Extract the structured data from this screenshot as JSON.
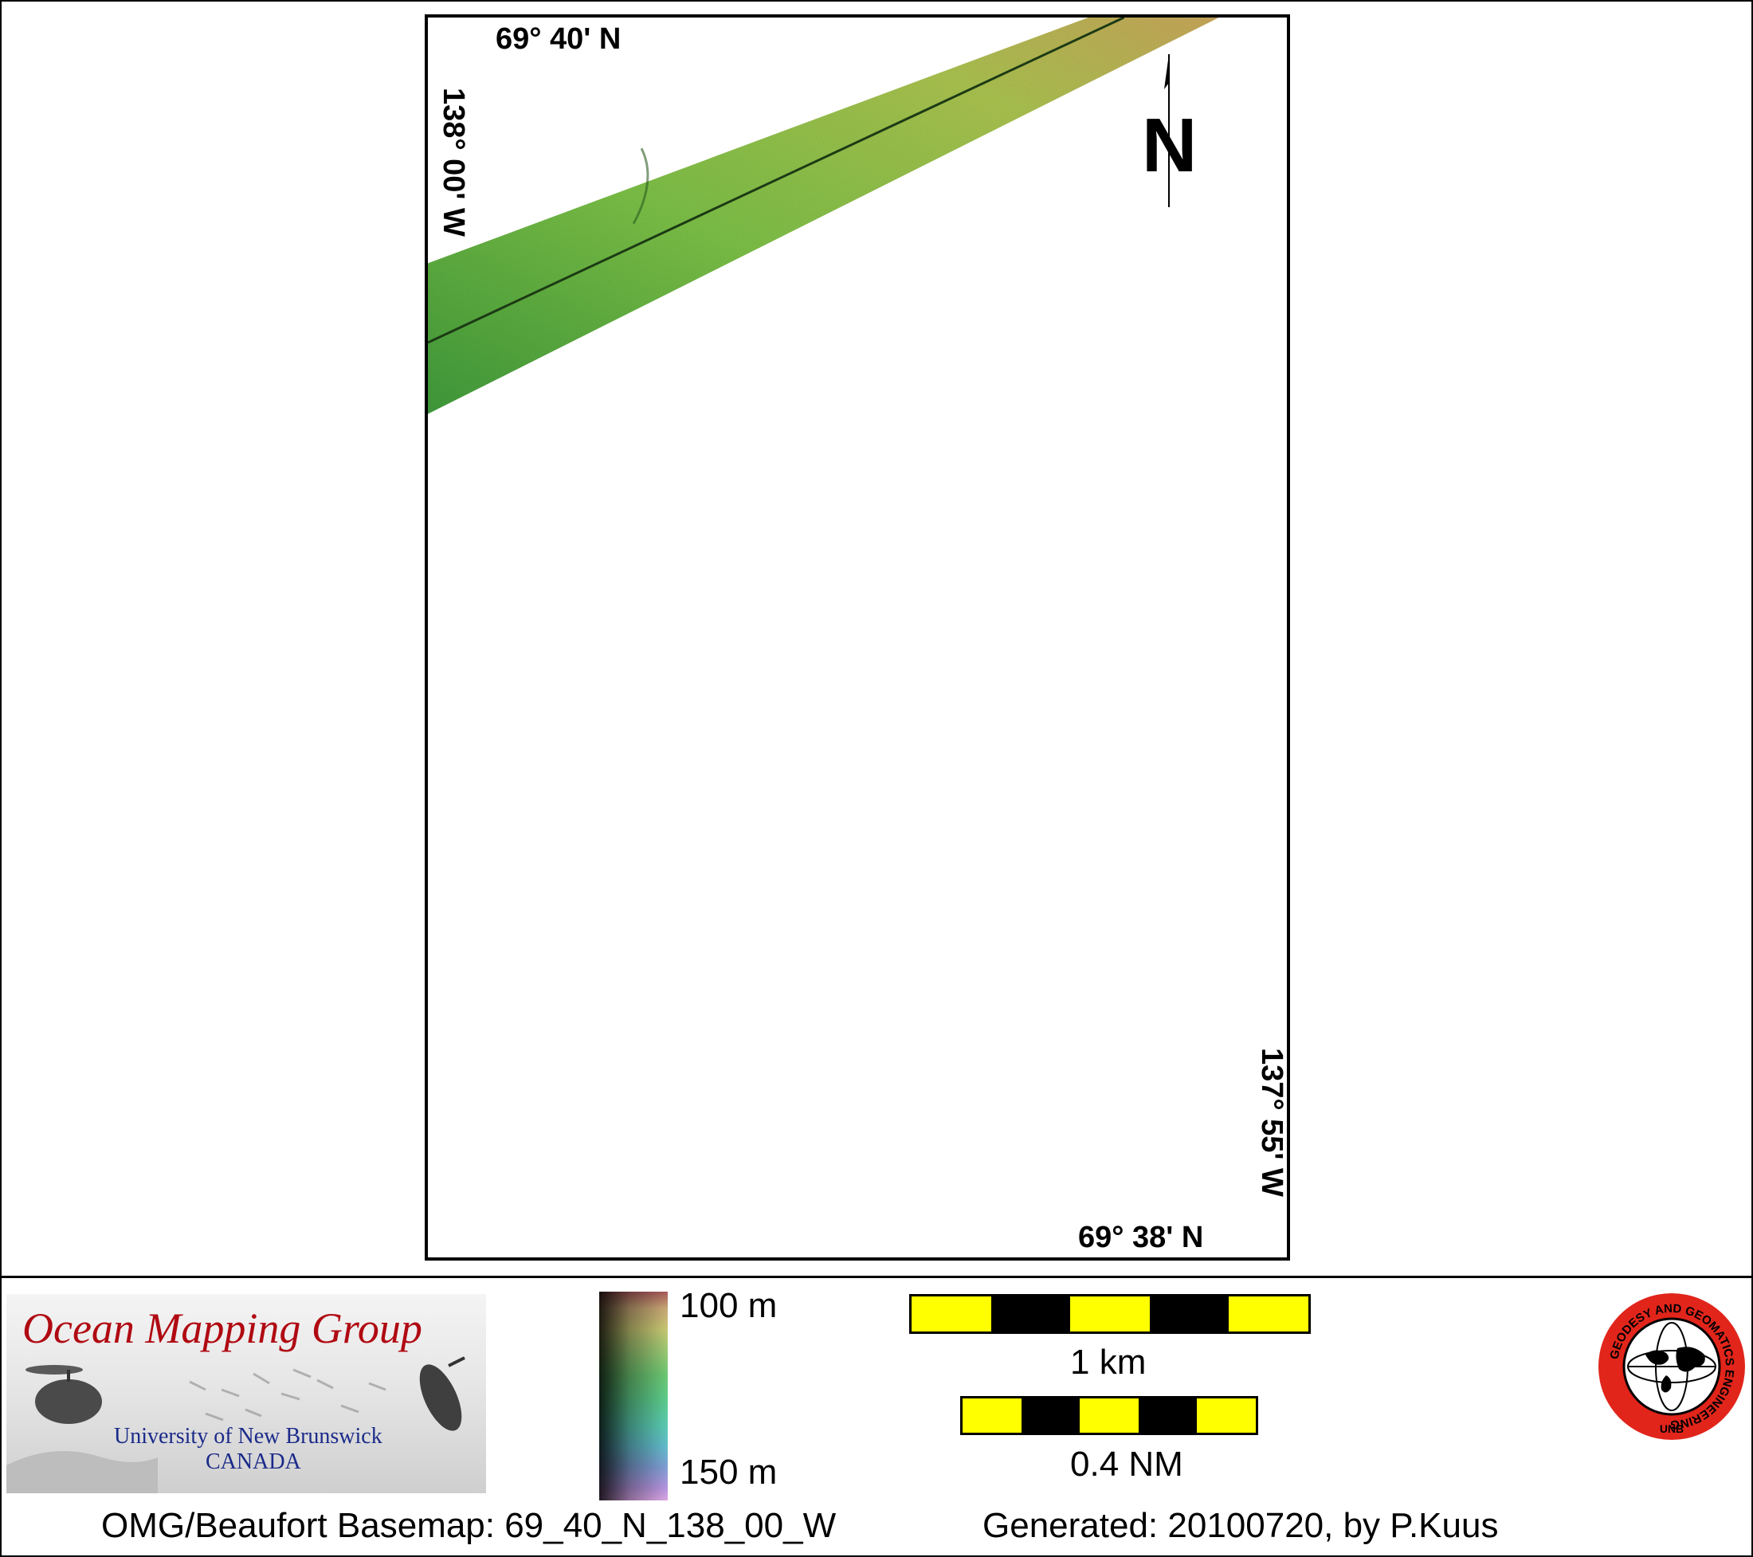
{
  "map": {
    "coords": {
      "top_lat": "69° 40' N",
      "bottom_lat": "69° 38' N",
      "left_lon": "138° 00' W",
      "right_lon": "137° 55' W"
    },
    "north_label": "N",
    "swath_colors": [
      "#3f9a3a",
      "#7bbf46",
      "#b7c254",
      "#c7a65a"
    ]
  },
  "footer": {
    "logo": {
      "title": "Ocean Mapping Group",
      "subtitle_line1": "University of New Brunswick",
      "subtitle_line2": "CANADA",
      "title_color": "#b00a12",
      "subtitle_color": "#1a2a8a"
    },
    "colorbar": {
      "top_label": "100 m",
      "bottom_label": "150 m"
    },
    "scale": {
      "km_label": "1 km",
      "nm_label": "0.4 NM",
      "km_segments": 5,
      "nm_segments": 5,
      "colors": [
        "#ffff00",
        "#000000"
      ]
    },
    "seal": {
      "ring_text": "GEODESY AND GEOMATICS ENGINEERING",
      "bottom_text": "UNB",
      "ring_color": "#e1251b"
    },
    "caption_left": "OMG/Beaufort Basemap: 69_40_N_138_00_W",
    "caption_right": "Generated: 20100720, by P.Kuus"
  }
}
